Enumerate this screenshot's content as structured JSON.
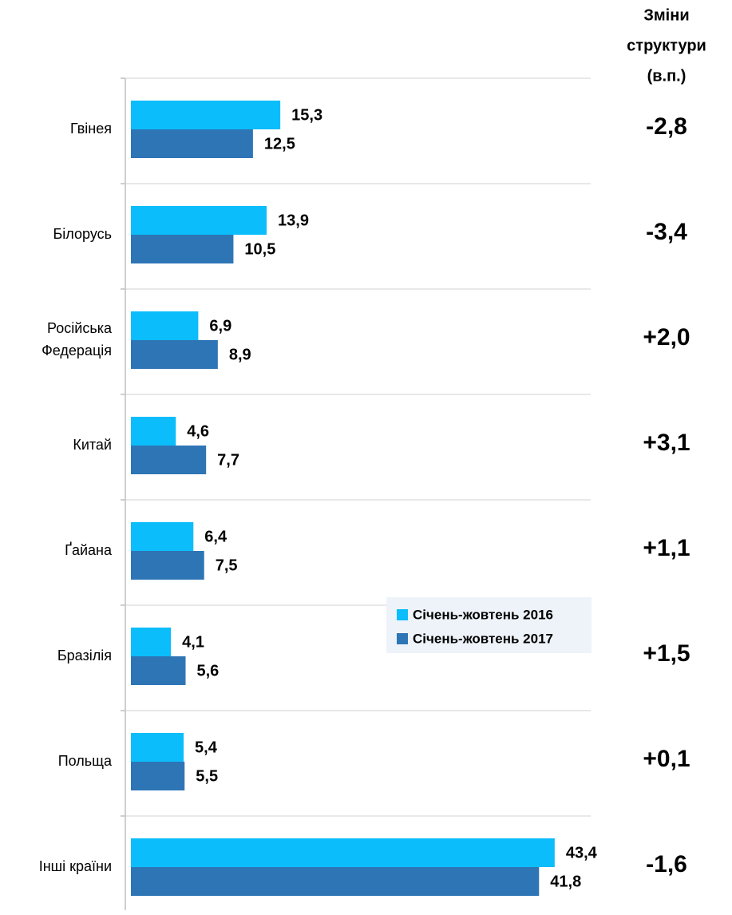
{
  "chart_data": {
    "type": "hbar",
    "categories": [
      "Гвінея",
      "Білорусь",
      "Російська Федерація",
      "Китай",
      "Ґайана",
      "Бразілія",
      "Польща",
      "Інші країни"
    ],
    "series": [
      {
        "name": "Січень-жовтень 2016",
        "color": "#0bbdfb",
        "values": [
          15.3,
          13.9,
          6.9,
          4.6,
          6.4,
          4.1,
          5.4,
          43.4
        ],
        "value_labels": [
          "15,3",
          "13,9",
          "6,9",
          "4,6",
          "6,4",
          "4,1",
          "5,4",
          "43,4"
        ]
      },
      {
        "name": "Січень-жовтень 2017",
        "color": "#2e75b6",
        "values": [
          12.5,
          10.5,
          8.9,
          7.7,
          7.5,
          5.6,
          5.5,
          41.8
        ],
        "value_labels": [
          "12,5",
          "10,5",
          "8,9",
          "7,7",
          "7,5",
          "5,6",
          "5,5",
          "41,8"
        ]
      }
    ],
    "xlim": [
      0,
      47.5
    ],
    "grid": true,
    "changes": {
      "title": [
        "Зміни",
        "структури",
        "(в.п.)"
      ],
      "values": [
        -2.8,
        -3.4,
        2.0,
        3.1,
        1.1,
        1.5,
        0.1,
        -1.6
      ],
      "value_labels": [
        "-2,8",
        "-3,4",
        "+2,0",
        "+3,1",
        "+1,1",
        "+1,5",
        "+0,1",
        "-1,6"
      ]
    }
  }
}
